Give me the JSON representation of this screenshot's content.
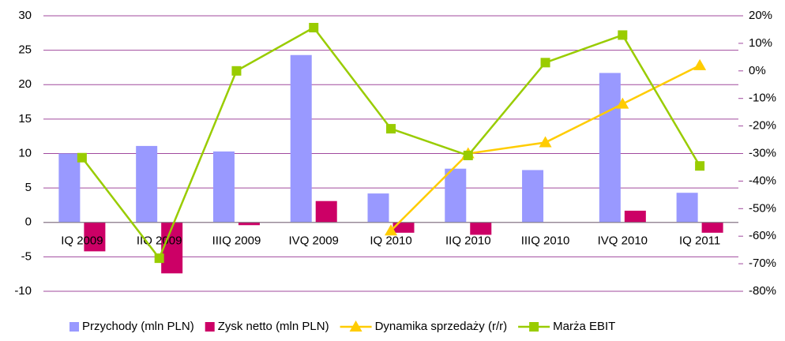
{
  "chart_data": {
    "type": "bar",
    "categories": [
      "IQ 2009",
      "IIQ 2009",
      "IIIQ 2009",
      "IVQ 2009",
      "IQ 2010",
      "IIQ 2010",
      "IIIQ 2010",
      "IVQ 2010",
      "IQ 2011"
    ],
    "series": [
      {
        "name": "Przychody (mln PLN)",
        "type": "bar",
        "color": "#9999ff",
        "values": [
          10.0,
          11.1,
          10.3,
          24.3,
          4.2,
          7.8,
          7.6,
          21.7,
          4.3
        ]
      },
      {
        "name": "Zysk netto (mln PLN)",
        "type": "bar",
        "color": "#cc0066",
        "values": [
          -4.2,
          -7.4,
          -0.4,
          3.1,
          -1.5,
          -1.8,
          0,
          1.7,
          -1.5
        ]
      },
      {
        "name": "Dynamika sprzedaży (r/r)",
        "type": "line",
        "axis": "y2",
        "marker": "triangle",
        "color": "#ffcc00",
        "values": [
          null,
          null,
          null,
          null,
          -58,
          -30,
          -26,
          -12,
          2
        ]
      },
      {
        "name": "Marża EBIT",
        "type": "line",
        "axis": "y2",
        "marker": "square",
        "color": "#99cc00",
        "values": [
          -31.5,
          -68,
          0,
          15.7,
          -21,
          -30.7,
          3,
          13,
          -34.5
        ]
      }
    ],
    "ylim": [
      -10,
      30
    ],
    "yticks": [
      -10,
      -5,
      0,
      5,
      10,
      15,
      20,
      25,
      30
    ],
    "y2lim": [
      -80,
      20
    ],
    "y2ticks": [
      {
        "value": -80,
        "label": "-80%"
      },
      {
        "value": -70,
        "label": "-70%"
      },
      {
        "value": -60,
        "label": "-60%"
      },
      {
        "value": -50,
        "label": "-50%"
      },
      {
        "value": -40,
        "label": "-40%"
      },
      {
        "value": -30,
        "label": "-30%"
      },
      {
        "value": -20,
        "label": "-20%"
      },
      {
        "value": -10,
        "label": "-10%"
      },
      {
        "value": 0,
        "label": "0%"
      },
      {
        "value": 10,
        "label": "10%"
      },
      {
        "value": 20,
        "label": "20%"
      }
    ],
    "grid": true,
    "legend": "bottom"
  }
}
